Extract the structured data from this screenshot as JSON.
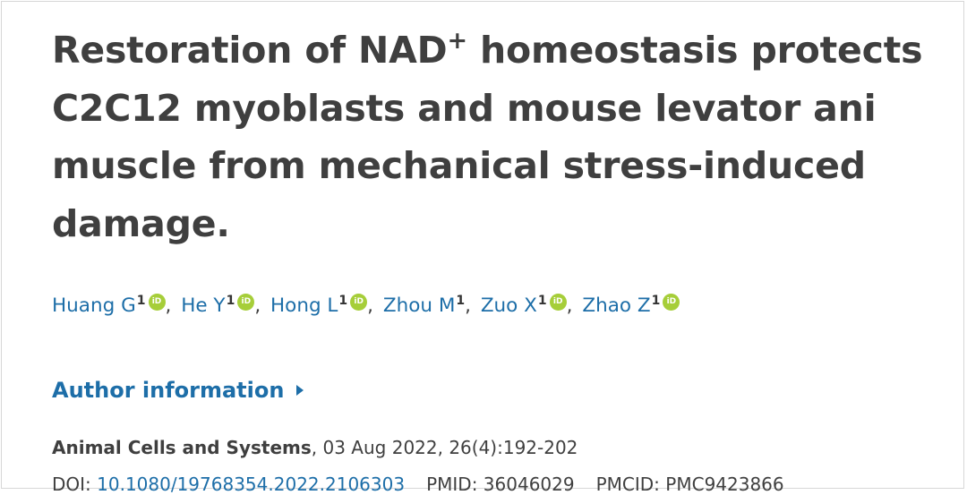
{
  "article": {
    "title_part1": "Restoration of NAD",
    "title_sup": "+",
    "title_part2": " homeostasis protects C2C12 myoblasts and mouse levator ani muscle from mechanical stress-induced damage."
  },
  "authors": [
    {
      "name": "Huang G",
      "aff": "1",
      "orcid": true
    },
    {
      "name": "He Y",
      "aff": "1",
      "orcid": true
    },
    {
      "name": "Hong L",
      "aff": "1",
      "orcid": true
    },
    {
      "name": "Zhou M",
      "aff": "1",
      "orcid": false
    },
    {
      "name": "Zuo X",
      "aff": "1",
      "orcid": true
    },
    {
      "name": "Zhao Z",
      "aff": "1",
      "orcid": true
    }
  ],
  "orcid_label": "iD",
  "author_info_label": "Author information",
  "publication": {
    "journal": "Animal Cells and Systems",
    "details": ", 03 Aug 2022, 26(4):192-202"
  },
  "identifiers": {
    "doi_label": "DOI: ",
    "doi": "10.1080/19768354.2022.2106303",
    "pmid_label": "PMID: ",
    "pmid": "36046029",
    "pmcid_label": "PMCID: ",
    "pmcid": "PMC9423866"
  },
  "colors": {
    "link": "#1d6ea8",
    "text": "#3f3f3f",
    "orcid": "#a6ce39"
  }
}
